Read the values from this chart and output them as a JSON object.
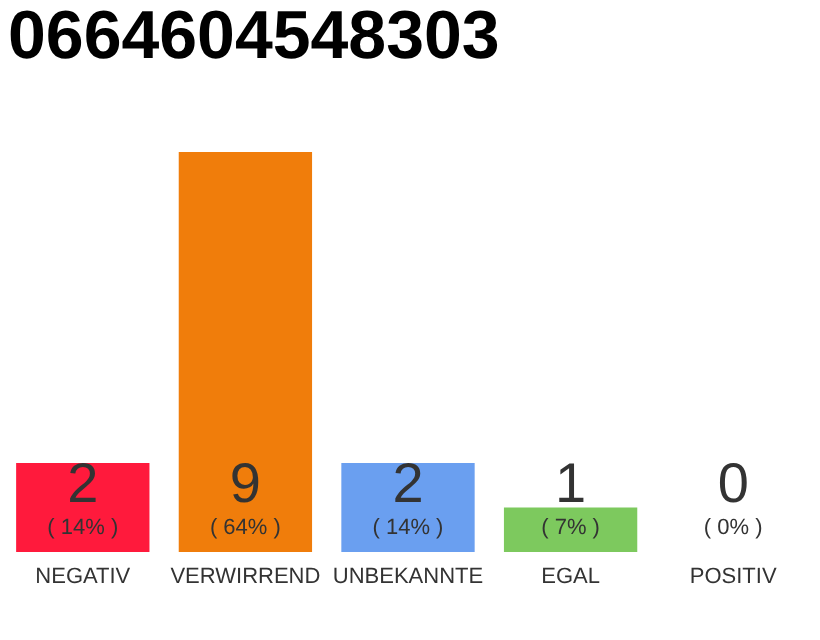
{
  "chart_data": {
    "type": "bar",
    "title": "0664604548303",
    "categories": [
      "NEGATIV",
      "VERWIRREND",
      "UNBEKANNTE",
      "EGAL",
      "POSITIV"
    ],
    "values": [
      2,
      9,
      2,
      1,
      0
    ],
    "colors": [
      "#ff1a3c",
      "#f07d0b",
      "#6a9ff0",
      "#7dc95e",
      "#bbbbbb"
    ],
    "data_labels": true,
    "annotations": [
      "( 14% )",
      "( 64% )",
      "( 14% )",
      "( 7% )",
      "( 0% )"
    ]
  }
}
